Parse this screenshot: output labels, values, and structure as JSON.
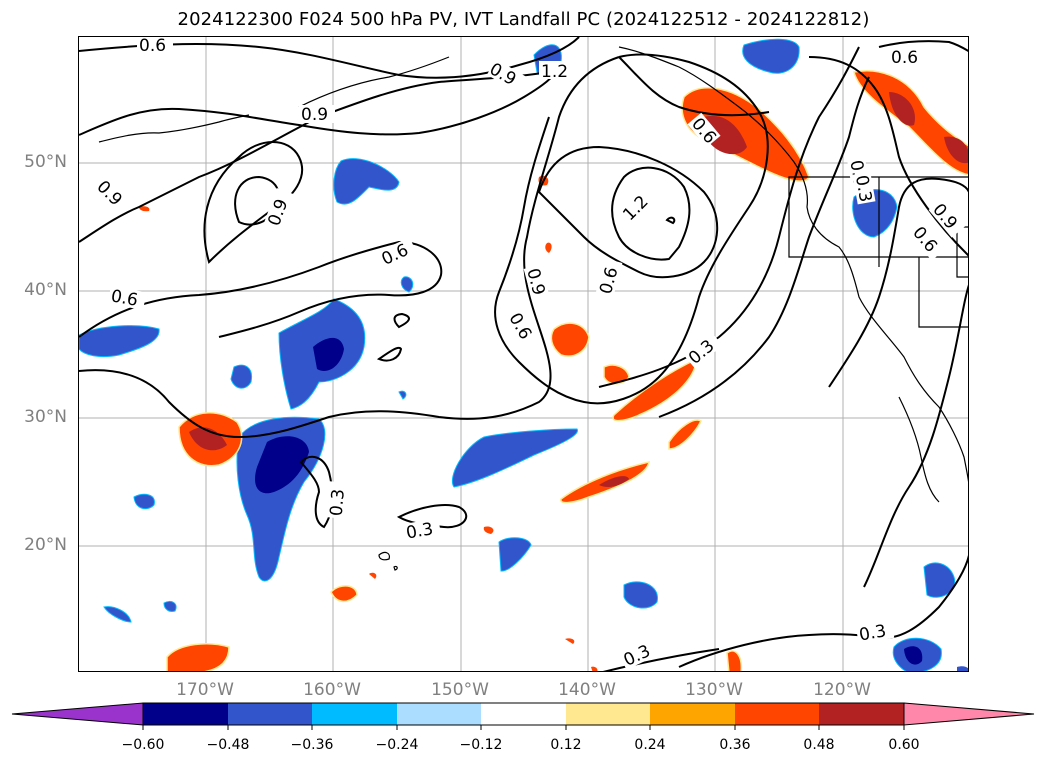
{
  "title": "2024122300 F024 500 hPa PV, IVT Landfall PC (2024122512 - 2024122812)",
  "map": {
    "latitude_labels": [
      "50°N",
      "40°N",
      "30°N",
      "20°N"
    ],
    "longitude_labels": [
      "170°W",
      "160°W",
      "150°W",
      "140°W",
      "130°W",
      "120°W"
    ],
    "contour_labels": [
      "0.6",
      "0.9",
      "1.2",
      "0.6",
      "0.9",
      "0.9",
      "0.9",
      "0.6",
      "0.6",
      "0.9",
      "1.2",
      "0.9",
      "0.6",
      "0.6",
      "0.3",
      "0.3",
      "0.3",
      "0.3",
      "0.3",
      "0.6",
      "0.3",
      "0.9",
      "0.6"
    ],
    "contour_color": "#000000",
    "gridline_color": "#b0b0b0",
    "coastline_color": "#000000"
  },
  "colorbar": {
    "ticks": [
      "−0.60",
      "−0.48",
      "−0.36",
      "−0.24",
      "−0.12",
      "0.12",
      "0.24",
      "0.36",
      "0.48",
      "0.60"
    ],
    "colors": [
      "#9933cc",
      "#00008b",
      "#3355cc",
      "#00bbff",
      "#aaddff",
      "#ffffff",
      "#ffe890",
      "#ffa500",
      "#ff4500",
      "#b22222",
      "#ff88aa"
    ],
    "extend": "both"
  }
}
